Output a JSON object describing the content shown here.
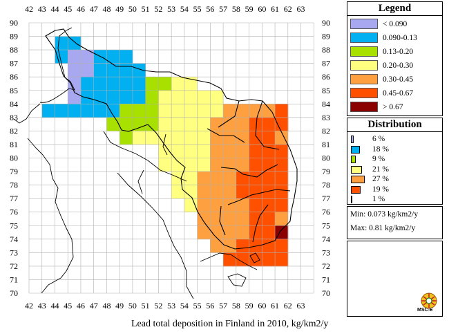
{
  "map": {
    "x_ticks": [
      "42",
      "43",
      "44",
      "45",
      "46",
      "47",
      "48",
      "49",
      "50",
      "51",
      "52",
      "53",
      "54",
      "55",
      "56",
      "57",
      "58",
      "59",
      "60",
      "61",
      "62",
      "63"
    ],
    "y_ticks": [
      "90",
      "89",
      "88",
      "87",
      "86",
      "85",
      "84",
      "83",
      "82",
      "81",
      "80",
      "79",
      "78",
      "77",
      "76",
      "75",
      "74",
      "73",
      "72",
      "71",
      "70"
    ]
  },
  "legend": {
    "title": "Legend",
    "items": [
      {
        "label": "< 0.090",
        "color": "#a8a8f0"
      },
      {
        "label": "0.090-0.13",
        "color": "#00b0f0"
      },
      {
        "label": "0.13-0.20",
        "color": "#a8e000"
      },
      {
        "label": "0.20-0.30",
        "color": "#ffff80"
      },
      {
        "label": "0.30-0.45",
        "color": "#ffa040"
      },
      {
        "label": "0.45-0.67",
        "color": "#ff5000"
      },
      {
        "label": "> 0.67",
        "color": "#8b0000"
      }
    ]
  },
  "distribution": {
    "title": "Distribution",
    "items": [
      {
        "label": "6 %",
        "value": 6,
        "color": "#a8a8f0"
      },
      {
        "label": "18 %",
        "value": 18,
        "color": "#00b0f0"
      },
      {
        "label": "9 %",
        "value": 9,
        "color": "#a8e000"
      },
      {
        "label": "21 %",
        "value": 21,
        "color": "#ffff80"
      },
      {
        "label": "27 %",
        "value": 27,
        "color": "#ffa040"
      },
      {
        "label": "19 %",
        "value": 19,
        "color": "#ff5000"
      },
      {
        "label": "1 %",
        "value": 1,
        "color": "#8b0000"
      }
    ]
  },
  "stats": {
    "min": "Min: 0.073 kg/km2/y",
    "max": "Max: 0.81 kg/km2/y"
  },
  "logo_text": "MSC-E",
  "caption": "Lead total deposition in Finland in 2010, kg/km2/y"
}
